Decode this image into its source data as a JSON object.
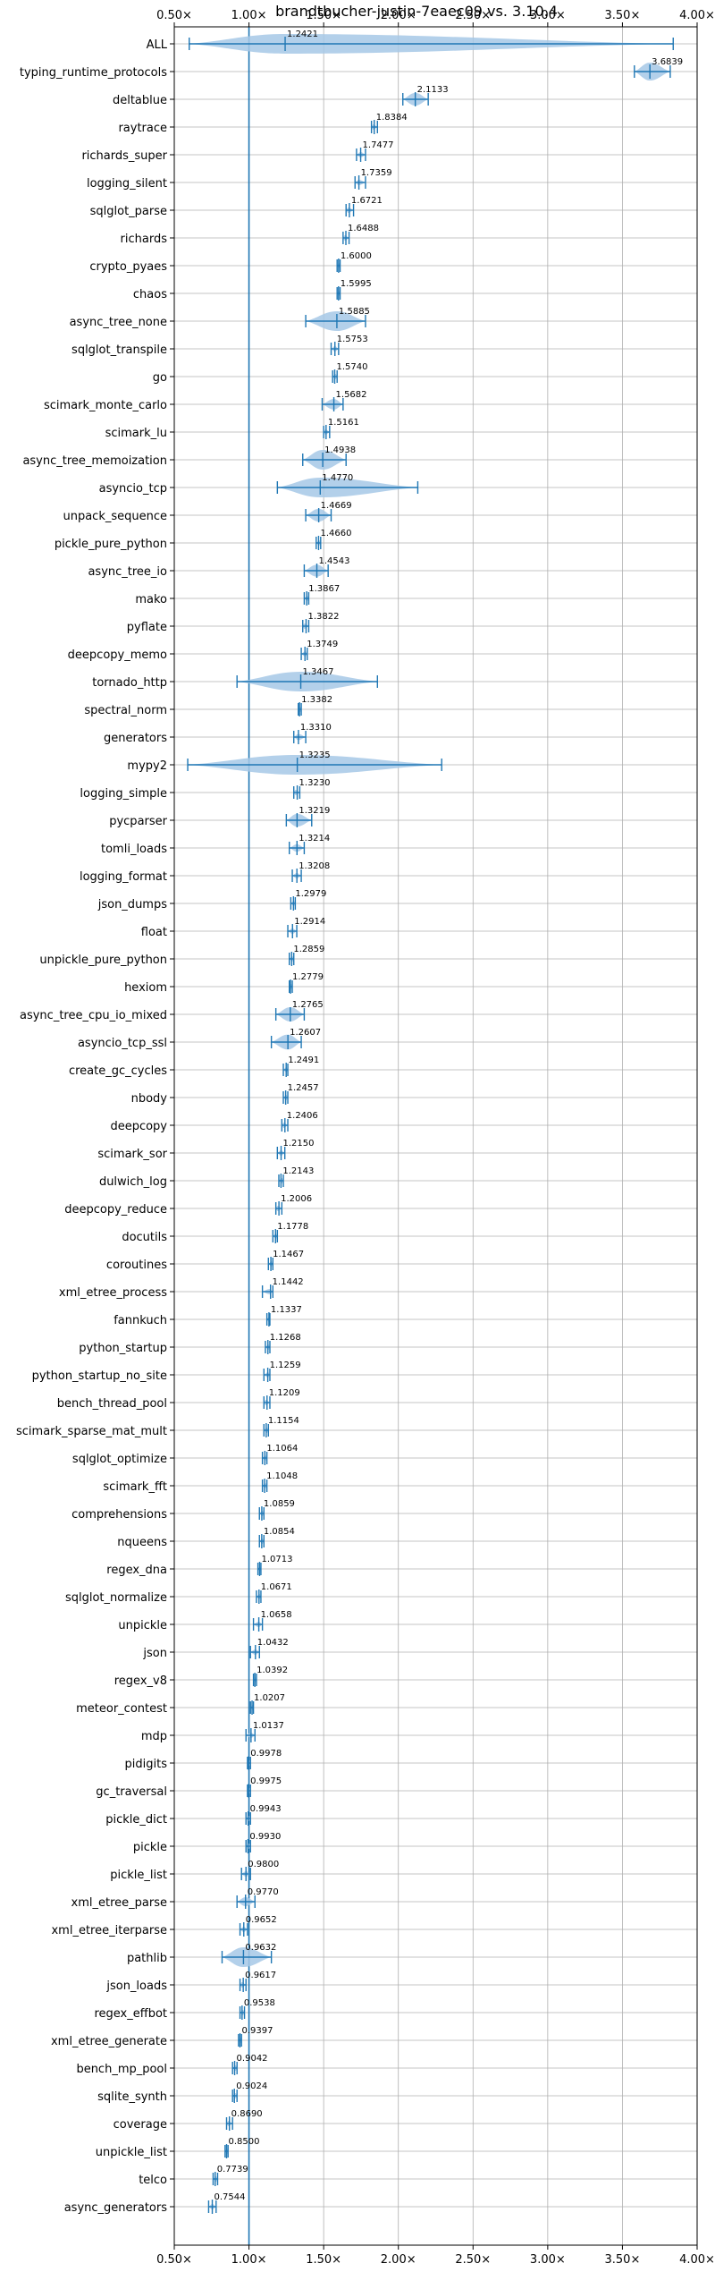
{
  "colors": {
    "series": "#1f77b4",
    "violin_fill": "#a6c8e6",
    "grid": "#b0b0b0",
    "axis": "#000000"
  },
  "chart_data": {
    "type": "violin",
    "orientation": "horizontal",
    "title": "brandtbucher-justin-7eaec09 vs. 3.10.4",
    "xlabel": "",
    "ylabel": "",
    "xlim": [
      0.5,
      4.0
    ],
    "xticks": [
      0.5,
      1.0,
      1.5,
      2.0,
      2.5,
      3.0,
      3.5,
      4.0
    ],
    "xtick_labels": [
      "0.50×",
      "1.00×",
      "1.50×",
      "2.00×",
      "2.50×",
      "3.00×",
      "3.50×",
      "4.00×"
    ],
    "xticks_top_and_bottom": true,
    "reference_line": 1.0,
    "grid": true,
    "categories": [
      "ALL",
      "typing_runtime_protocols",
      "deltablue",
      "raytrace",
      "richards_super",
      "logging_silent",
      "sqlglot_parse",
      "richards",
      "crypto_pyaes",
      "chaos",
      "async_tree_none",
      "sqlglot_transpile",
      "go",
      "scimark_monte_carlo",
      "scimark_lu",
      "async_tree_memoization",
      "asyncio_tcp",
      "unpack_sequence",
      "pickle_pure_python",
      "async_tree_io",
      "mako",
      "pyflate",
      "deepcopy_memo",
      "tornado_http",
      "spectral_norm",
      "generators",
      "mypy2",
      "logging_simple",
      "pycparser",
      "tomli_loads",
      "logging_format",
      "json_dumps",
      "float",
      "unpickle_pure_python",
      "hexiom",
      "async_tree_cpu_io_mixed",
      "asyncio_tcp_ssl",
      "create_gc_cycles",
      "nbody",
      "deepcopy",
      "scimark_sor",
      "dulwich_log",
      "deepcopy_reduce",
      "docutils",
      "coroutines",
      "xml_etree_process",
      "fannkuch",
      "python_startup",
      "python_startup_no_site",
      "bench_thread_pool",
      "scimark_sparse_mat_mult",
      "sqlglot_optimize",
      "scimark_fft",
      "comprehensions",
      "nqueens",
      "regex_dna",
      "sqlglot_normalize",
      "unpickle",
      "json",
      "regex_v8",
      "meteor_contest",
      "mdp",
      "pidigits",
      "gc_traversal",
      "pickle_dict",
      "pickle",
      "pickle_list",
      "xml_etree_parse",
      "xml_etree_iterparse",
      "pathlib",
      "json_loads",
      "regex_effbot",
      "xml_etree_generate",
      "bench_mp_pool",
      "sqlite_synth",
      "coverage",
      "unpickle_list",
      "telco",
      "async_generators"
    ],
    "values": [
      1.2421,
      3.6839,
      2.1133,
      1.8384,
      1.7477,
      1.7359,
      1.6721,
      1.6488,
      1.6,
      1.5995,
      1.5885,
      1.5753,
      1.574,
      1.5682,
      1.5161,
      1.4938,
      1.477,
      1.4669,
      1.466,
      1.4543,
      1.3867,
      1.3822,
      1.3749,
      1.3467,
      1.3382,
      1.331,
      1.3235,
      1.323,
      1.3219,
      1.3214,
      1.3208,
      1.2979,
      1.2914,
      1.2859,
      1.2779,
      1.2765,
      1.2607,
      1.2491,
      1.2457,
      1.2406,
      1.215,
      1.2143,
      1.2006,
      1.1778,
      1.1467,
      1.1442,
      1.1337,
      1.1268,
      1.1259,
      1.1209,
      1.1154,
      1.1064,
      1.1048,
      1.0859,
      1.0854,
      1.0713,
      1.0671,
      1.0658,
      1.0432,
      1.0392,
      1.0207,
      1.0137,
      0.9978,
      0.9975,
      0.9943,
      0.993,
      0.98,
      0.977,
      0.9652,
      0.9632,
      0.9617,
      0.9538,
      0.9397,
      0.9042,
      0.9024,
      0.869,
      0.85,
      0.7739,
      0.7544
    ],
    "value_labels": [
      "1.2421",
      "3.6839",
      "2.1133",
      "1.8384",
      "1.7477",
      "1.7359",
      "1.6721",
      "1.6488",
      "1.6000",
      "1.5995",
      "1.5885",
      "1.5753",
      "1.5740",
      "1.5682",
      "1.5161",
      "1.4938",
      "1.4770",
      "1.4669",
      "1.4660",
      "1.4543",
      "1.3867",
      "1.3822",
      "1.3749",
      "1.3467",
      "1.3382",
      "1.3310",
      "1.3235",
      "1.3230",
      "1.3219",
      "1.3214",
      "1.3208",
      "1.2979",
      "1.2914",
      "1.2859",
      "1.2779",
      "1.2765",
      "1.2607",
      "1.2491",
      "1.2457",
      "1.2406",
      "1.2150",
      "1.2143",
      "1.2006",
      "1.1778",
      "1.1467",
      "1.1442",
      "1.1337",
      "1.1268",
      "1.1259",
      "1.1209",
      "1.1154",
      "1.1064",
      "1.1048",
      "1.0859",
      "1.0854",
      "1.0713",
      "1.0671",
      "1.0658",
      "1.0432",
      "1.0392",
      "1.0207",
      "1.0137",
      "0.9978",
      "0.9975",
      "0.9943",
      "0.9930",
      "0.9800",
      "0.9770",
      "0.9652",
      "0.9632",
      "0.9617",
      "0.9538",
      "0.9397",
      "0.9042",
      "0.9024",
      "0.8690",
      "0.8500",
      "0.7739",
      "0.7544"
    ],
    "ranges": [
      [
        0.6,
        3.84
      ],
      [
        3.58,
        3.82
      ],
      [
        2.03,
        2.2
      ],
      [
        1.82,
        1.86
      ],
      [
        1.72,
        1.78
      ],
      [
        1.71,
        1.78
      ],
      [
        1.65,
        1.7
      ],
      [
        1.63,
        1.67
      ],
      [
        1.59,
        1.61
      ],
      [
        1.59,
        1.61
      ],
      [
        1.38,
        1.78
      ],
      [
        1.55,
        1.6
      ],
      [
        1.56,
        1.59
      ],
      [
        1.49,
        1.63
      ],
      [
        1.5,
        1.54
      ],
      [
        1.36,
        1.65
      ],
      [
        1.19,
        2.13
      ],
      [
        1.38,
        1.55
      ],
      [
        1.45,
        1.48
      ],
      [
        1.37,
        1.53
      ],
      [
        1.37,
        1.4
      ],
      [
        1.36,
        1.4
      ],
      [
        1.35,
        1.39
      ],
      [
        0.92,
        1.86
      ],
      [
        1.33,
        1.35
      ],
      [
        1.3,
        1.38
      ],
      [
        0.59,
        2.29
      ],
      [
        1.3,
        1.34
      ],
      [
        1.25,
        1.42
      ],
      [
        1.27,
        1.37
      ],
      [
        1.29,
        1.35
      ],
      [
        1.28,
        1.31
      ],
      [
        1.26,
        1.32
      ],
      [
        1.27,
        1.3
      ],
      [
        1.27,
        1.29
      ],
      [
        1.18,
        1.37
      ],
      [
        1.15,
        1.35
      ],
      [
        1.23,
        1.26
      ],
      [
        1.23,
        1.26
      ],
      [
        1.22,
        1.26
      ],
      [
        1.19,
        1.24
      ],
      [
        1.2,
        1.23
      ],
      [
        1.18,
        1.22
      ],
      [
        1.16,
        1.19
      ],
      [
        1.13,
        1.16
      ],
      [
        1.09,
        1.16
      ],
      [
        1.12,
        1.14
      ],
      [
        1.11,
        1.14
      ],
      [
        1.1,
        1.14
      ],
      [
        1.1,
        1.14
      ],
      [
        1.1,
        1.13
      ],
      [
        1.09,
        1.12
      ],
      [
        1.09,
        1.12
      ],
      [
        1.07,
        1.1
      ],
      [
        1.07,
        1.1
      ],
      [
        1.06,
        1.08
      ],
      [
        1.05,
        1.08
      ],
      [
        1.03,
        1.09
      ],
      [
        1.01,
        1.07
      ],
      [
        1.03,
        1.05
      ],
      [
        1.01,
        1.03
      ],
      [
        0.98,
        1.04
      ],
      [
        0.99,
        1.01
      ],
      [
        0.99,
        1.01
      ],
      [
        0.98,
        1.01
      ],
      [
        0.98,
        1.01
      ],
      [
        0.95,
        1.01
      ],
      [
        0.92,
        1.04
      ],
      [
        0.94,
        0.99
      ],
      [
        0.82,
        1.15
      ],
      [
        0.94,
        0.98
      ],
      [
        0.94,
        0.97
      ],
      [
        0.93,
        0.95
      ],
      [
        0.89,
        0.92
      ],
      [
        0.89,
        0.92
      ],
      [
        0.85,
        0.89
      ],
      [
        0.84,
        0.86
      ],
      [
        0.76,
        0.79
      ],
      [
        0.73,
        0.78
      ]
    ]
  }
}
